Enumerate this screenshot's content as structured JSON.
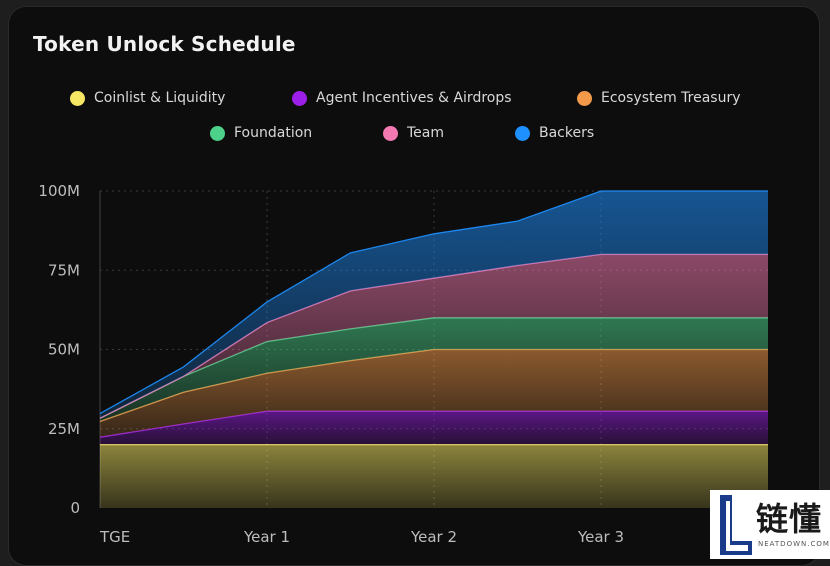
{
  "page": {
    "title": "Token Unlock Schedule"
  },
  "legend": [
    {
      "label": "Coinlist & Liquidity",
      "color": "#f5e663"
    },
    {
      "label": "Agent Incentives & Airdrops",
      "color": "#9b1fe8"
    },
    {
      "label": "Ecosystem Treasury",
      "color": "#f2994a"
    },
    {
      "label": "Foundation",
      "color": "#4cd08a"
    },
    {
      "label": "Team",
      "color": "#f27ab0"
    },
    {
      "label": "Backers",
      "color": "#1e90ff"
    }
  ],
  "chart_data": {
    "type": "area",
    "stacked": true,
    "title": "Token Unlock Schedule",
    "x_labels": [
      "TGE",
      "Year 1",
      "Year 2",
      "Year 3"
    ],
    "x": [
      0,
      0.5,
      1,
      1.5,
      2,
      2.5,
      3,
      4
    ],
    "y_tick_labels": [
      "0",
      "25M",
      "50M",
      "75M",
      "100M"
    ],
    "y_ticks": [
      0,
      25,
      50,
      75,
      100
    ],
    "ylim": [
      0,
      100
    ],
    "grid": true,
    "legend_position": "top",
    "series": [
      {
        "name": "Coinlist & Liquidity",
        "color": "#f5e663",
        "values": [
          20,
          20,
          20,
          20,
          20,
          20,
          20,
          20
        ]
      },
      {
        "name": "Agent Incentives & Airdrops",
        "color": "#9b1fe8",
        "values": [
          2.3,
          6.5,
          10.5,
          10.5,
          10.5,
          10.5,
          10.5,
          10.5
        ]
      },
      {
        "name": "Ecosystem Treasury",
        "color": "#f2994a",
        "values": [
          5,
          10,
          12,
          16,
          19.5,
          19.5,
          19.5,
          19.5
        ]
      },
      {
        "name": "Foundation",
        "color": "#4cd08a",
        "values": [
          1,
          5,
          10,
          10,
          10,
          10,
          10,
          10
        ]
      },
      {
        "name": "Team",
        "color": "#f27ab0",
        "values": [
          0,
          0,
          6,
          12,
          12.5,
          16.5,
          20,
          20
        ]
      },
      {
        "name": "Backers",
        "color": "#1e90ff",
        "values": [
          1.5,
          3,
          6.5,
          12,
          14,
          14,
          20,
          20
        ]
      }
    ]
  },
  "watermark": {
    "text": "链懂",
    "subtext": "NEATDOWN.COM"
  }
}
